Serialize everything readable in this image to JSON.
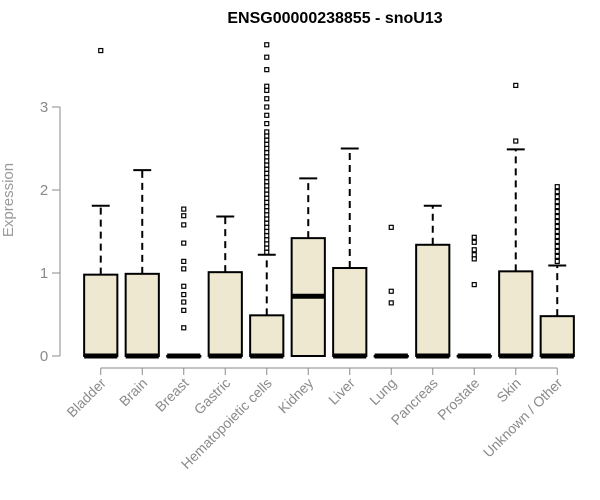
{
  "chart_data": {
    "type": "box",
    "title": "ENSG00000238855 - snoU13",
    "xlabel": "",
    "ylabel": "Expression",
    "ylim": [
      0,
      3.9
    ],
    "yticks": [
      0,
      1,
      2,
      3
    ],
    "grid": false,
    "box_fill": "#ede8cf",
    "box_stroke": "#000000",
    "axis_color": "#8a8a8a",
    "categories": [
      "Bladder",
      "Brain",
      "Breast",
      "Gastric",
      "Hematopoietic cells",
      "Kidney",
      "Liver",
      "Lung",
      "Pancreas",
      "Prostate",
      "Skin",
      "Unknown / Other"
    ],
    "boxes": [
      {
        "q1": 0,
        "median": 0,
        "q3": 0.98,
        "whisker_low": 0,
        "whisker_high": 1.81,
        "outliers": [
          3.68
        ]
      },
      {
        "q1": 0,
        "median": 0,
        "q3": 0.99,
        "whisker_low": 0,
        "whisker_high": 2.24,
        "outliers": []
      },
      {
        "q1": 0,
        "median": 0,
        "q3": 0,
        "whisker_low": 0,
        "whisker_high": 0,
        "outliers": [
          0.34,
          0.55,
          0.65,
          0.74,
          0.84,
          1.05,
          1.14,
          1.36,
          1.58,
          1.69,
          1.77
        ]
      },
      {
        "q1": 0,
        "median": 0,
        "q3": 1.01,
        "whisker_low": 0,
        "whisker_high": 1.68,
        "outliers": []
      },
      {
        "q1": 0,
        "median": 0,
        "q3": 0.49,
        "whisker_low": 0,
        "whisker_high": 1.22,
        "outliers": [
          1.25,
          1.3,
          1.35,
          1.4,
          1.45,
          1.5,
          1.55,
          1.6,
          1.65,
          1.7,
          1.75,
          1.8,
          1.85,
          1.9,
          1.95,
          2.0,
          2.05,
          2.1,
          2.15,
          2.2,
          2.25,
          2.3,
          2.35,
          2.4,
          2.45,
          2.5,
          2.55,
          2.6,
          2.65,
          2.7,
          2.8,
          2.9,
          3.0,
          3.1,
          3.2,
          3.25,
          3.45,
          3.6,
          3.75
        ]
      },
      {
        "q1": 0,
        "median": 0.72,
        "q3": 1.42,
        "whisker_low": 0,
        "whisker_high": 2.14,
        "outliers": []
      },
      {
        "q1": 0,
        "median": 0,
        "q3": 1.06,
        "whisker_low": 0,
        "whisker_high": 2.5,
        "outliers": []
      },
      {
        "q1": 0,
        "median": 0,
        "q3": 0,
        "whisker_low": 0,
        "whisker_high": 0,
        "outliers": [
          0.64,
          0.78,
          1.55
        ]
      },
      {
        "q1": 0,
        "median": 0,
        "q3": 1.34,
        "whisker_low": 0,
        "whisker_high": 1.81,
        "outliers": []
      },
      {
        "q1": 0,
        "median": 0,
        "q3": 0,
        "whisker_low": 0,
        "whisker_high": 0,
        "outliers": [
          0.86,
          1.17,
          1.22,
          1.28,
          1.37,
          1.43
        ]
      },
      {
        "q1": 0,
        "median": 0,
        "q3": 1.02,
        "whisker_low": 0,
        "whisker_high": 2.49,
        "outliers": [
          2.59,
          3.26
        ]
      },
      {
        "q1": 0,
        "median": 0,
        "q3": 0.48,
        "whisker_low": 0,
        "whisker_high": 1.09,
        "outliers": [
          1.14,
          1.2,
          1.26,
          1.32,
          1.38,
          1.44,
          1.5,
          1.56,
          1.62,
          1.68,
          1.74,
          1.8,
          1.86,
          1.92,
          1.98,
          2.04
        ]
      }
    ]
  }
}
